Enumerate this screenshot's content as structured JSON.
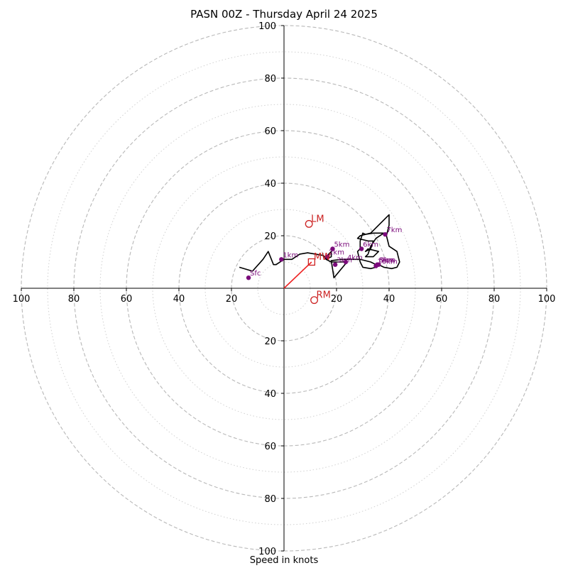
{
  "chart_data": {
    "type": "line",
    "title": "PASN 00Z - Thursday April 24 2025",
    "xlabel": "Speed in knots",
    "range": [
      0,
      100
    ],
    "rings_major": [
      20,
      40,
      60,
      80,
      100
    ],
    "rings_minor": [
      10,
      30,
      50,
      70,
      90
    ],
    "ticks": [
      "100",
      "80",
      "60",
      "40",
      "20",
      "20",
      "40",
      "60",
      "80",
      "100"
    ],
    "tick_values": [
      -100,
      -80,
      -60,
      -40,
      -20,
      20,
      40,
      60,
      80,
      100
    ],
    "hodograph": [
      [
        -17,
        8
      ],
      [
        -12,
        6.5
      ],
      [
        -8,
        11
      ],
      [
        -6,
        14
      ],
      [
        -4,
        9
      ],
      [
        -3,
        9
      ],
      [
        0,
        11
      ],
      [
        3,
        11
      ],
      [
        6,
        13
      ],
      [
        9,
        13.5
      ],
      [
        12,
        13
      ],
      [
        15,
        12.5
      ],
      [
        16,
        11
      ],
      [
        17,
        13
      ],
      [
        18,
        14
      ],
      [
        18,
        12
      ],
      [
        16,
        11
      ],
      [
        18,
        10
      ],
      [
        20,
        10
      ],
      [
        24,
        10
      ],
      [
        19,
        4
      ],
      [
        18,
        10.5
      ],
      [
        22,
        11
      ],
      [
        29,
        11
      ],
      [
        33,
        10
      ],
      [
        35,
        9
      ],
      [
        36,
        9
      ],
      [
        38,
        8
      ],
      [
        41,
        7.5
      ],
      [
        43,
        8
      ],
      [
        44,
        10
      ],
      [
        43,
        14
      ],
      [
        40,
        16
      ],
      [
        39,
        20
      ],
      [
        40,
        24
      ],
      [
        40,
        28
      ],
      [
        36,
        24
      ],
      [
        33,
        21
      ],
      [
        29,
        20
      ],
      [
        28,
        19
      ],
      [
        32,
        18
      ],
      [
        34,
        18
      ],
      [
        33,
        15
      ],
      [
        31,
        14
      ],
      [
        32,
        15
      ],
      [
        36,
        14
      ],
      [
        34,
        12
      ],
      [
        31,
        12
      ],
      [
        32,
        13
      ],
      [
        33,
        16
      ],
      [
        35,
        19
      ],
      [
        38,
        21
      ],
      [
        34,
        21
      ],
      [
        31,
        20.5
      ],
      [
        30,
        21
      ],
      [
        29,
        18
      ],
      [
        29,
        15
      ],
      [
        28,
        14
      ],
      [
        29,
        10
      ],
      [
        30,
        8
      ],
      [
        33,
        7.5
      ],
      [
        35,
        8
      ],
      [
        36,
        9
      ]
    ],
    "height_labels": [
      {
        "text": "Sfc",
        "u": -13.5,
        "v": 4
      },
      {
        "text": "1km",
        "u": -1,
        "v": 11
      },
      {
        "text": "2km",
        "u": 16.5,
        "v": 12
      },
      {
        "text": "3km",
        "u": 19.5,
        "v": 9
      },
      {
        "text": "4km",
        "u": 23.5,
        "v": 10
      },
      {
        "text": "5km",
        "u": 18.5,
        "v": 15
      },
      {
        "text": "6km",
        "u": 29.5,
        "v": 15
      },
      {
        "text": "7km",
        "u": 38.5,
        "v": 20.5
      },
      {
        "text": "8km",
        "u": 35.5,
        "v": 9
      },
      {
        "text": "9km",
        "u": 36,
        "v": 9
      },
      {
        "text": "10km",
        "u": 35,
        "v": 8.5
      }
    ],
    "storm_motion": [
      {
        "label": "LM",
        "u": 9.5,
        "v": 24.5,
        "marker": "circle"
      },
      {
        "label": "MW",
        "u": 10.5,
        "v": 10,
        "marker": "square"
      },
      {
        "label": "RM",
        "u": 11.5,
        "v": -4.5,
        "marker": "circle"
      }
    ],
    "bunkers_vector": {
      "from": [
        0,
        0
      ],
      "to": [
        10.5,
        10
      ]
    },
    "colors": {
      "hodograph": "#000000",
      "height_markers": "#7b0b7b",
      "storm_motion": "#cc2222",
      "grid": "#b8b8b8"
    }
  }
}
